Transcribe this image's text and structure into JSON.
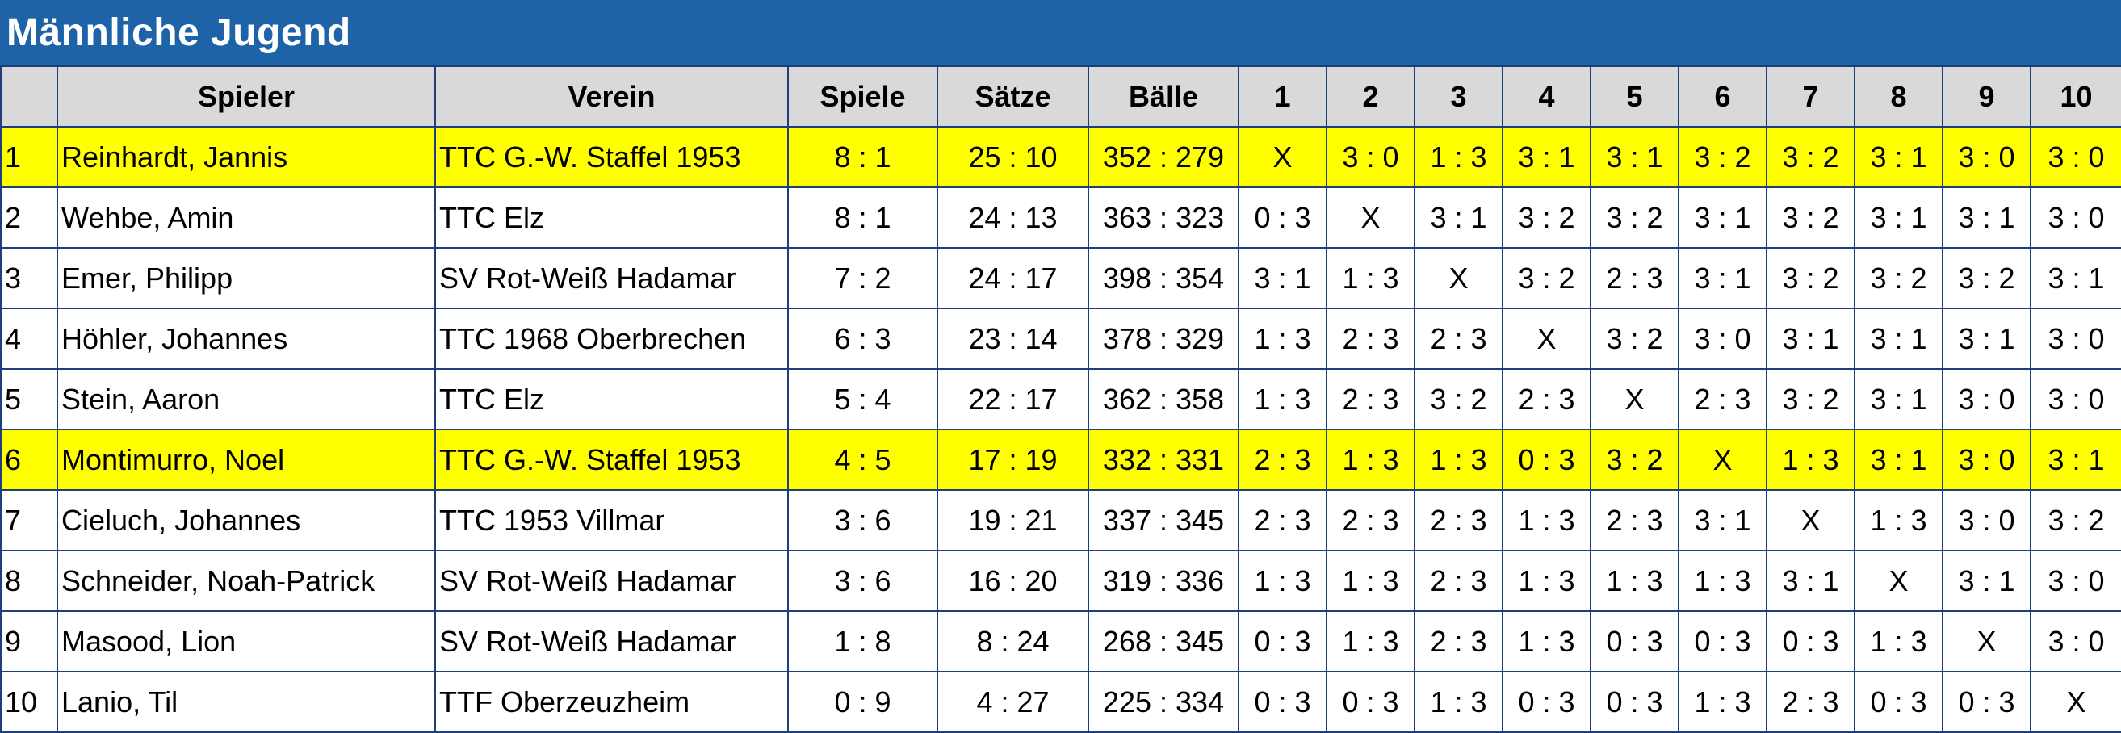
{
  "title": "Männliche Jugend",
  "columns": {
    "rank": "",
    "player": "Spieler",
    "club": "Verein",
    "games": "Spiele",
    "sets": "Sätze",
    "balls": "Bälle",
    "opponents": [
      "1",
      "2",
      "3",
      "4",
      "5",
      "6",
      "7",
      "8",
      "9",
      "10"
    ]
  },
  "highlight_color": "#ffff00",
  "header_color": "#1e63a8",
  "rows": [
    {
      "rank": "1",
      "player": "Reinhardt, Jannis",
      "club": "TTC G.-W. Staffel 1953",
      "games": "8 : 1",
      "sets": "25 : 10",
      "balls": "352 : 279",
      "highlight": true,
      "results": [
        "X",
        "3 : 0",
        "1 : 3",
        "3 : 1",
        "3 : 1",
        "3 : 2",
        "3 : 2",
        "3 : 1",
        "3 : 0",
        "3 : 0"
      ]
    },
    {
      "rank": "2",
      "player": "Wehbe, Amin",
      "club": "TTC Elz",
      "games": "8 : 1",
      "sets": "24 : 13",
      "balls": "363 : 323",
      "highlight": false,
      "results": [
        "0 : 3",
        "X",
        "3 : 1",
        "3 : 2",
        "3 : 2",
        "3 : 1",
        "3 : 2",
        "3 : 1",
        "3 : 1",
        "3 : 0"
      ]
    },
    {
      "rank": "3",
      "player": "Emer, Philipp",
      "club": "SV Rot-Weiß Hadamar",
      "games": "7 : 2",
      "sets": "24 : 17",
      "balls": "398 : 354",
      "highlight": false,
      "results": [
        "3 : 1",
        "1 : 3",
        "X",
        "3 : 2",
        "2 : 3",
        "3 : 1",
        "3 : 2",
        "3 : 2",
        "3 : 2",
        "3 : 1"
      ]
    },
    {
      "rank": "4",
      "player": "Höhler, Johannes",
      "club": "TTC 1968 Oberbrechen",
      "games": "6 : 3",
      "sets": "23 : 14",
      "balls": "378 : 329",
      "highlight": false,
      "results": [
        "1 : 3",
        "2 : 3",
        "2 : 3",
        "X",
        "3 : 2",
        "3 : 0",
        "3 : 1",
        "3 : 1",
        "3 : 1",
        "3 : 0"
      ]
    },
    {
      "rank": "5",
      "player": "Stein, Aaron",
      "club": "TTC Elz",
      "games": "5 : 4",
      "sets": "22 : 17",
      "balls": "362 : 358",
      "highlight": false,
      "results": [
        "1 : 3",
        "2 : 3",
        "3 : 2",
        "2 : 3",
        "X",
        "2 : 3",
        "3 : 2",
        "3 : 1",
        "3 : 0",
        "3 : 0"
      ]
    },
    {
      "rank": "6",
      "player": "Montimurro, Noel",
      "club": "TTC G.-W. Staffel 1953",
      "games": "4 : 5",
      "sets": "17 : 19",
      "balls": "332 : 331",
      "highlight": true,
      "results": [
        "2 : 3",
        "1 : 3",
        "1 : 3",
        "0 : 3",
        "3 : 2",
        "X",
        "1 : 3",
        "3 : 1",
        "3 : 0",
        "3 : 1"
      ]
    },
    {
      "rank": "7",
      "player": "Cieluch, Johannes",
      "club": "TTC 1953 Villmar",
      "games": "3 : 6",
      "sets": "19 : 21",
      "balls": "337 : 345",
      "highlight": false,
      "results": [
        "2 : 3",
        "2 : 3",
        "2 : 3",
        "1 : 3",
        "2 : 3",
        "3 : 1",
        "X",
        "1 : 3",
        "3 : 0",
        "3 : 2"
      ]
    },
    {
      "rank": "8",
      "player": "Schneider, Noah-Patrick",
      "club": "SV Rot-Weiß Hadamar",
      "games": "3 : 6",
      "sets": "16 : 20",
      "balls": "319 : 336",
      "highlight": false,
      "results": [
        "1 : 3",
        "1 : 3",
        "2 : 3",
        "1 : 3",
        "1 : 3",
        "1 : 3",
        "3 : 1",
        "X",
        "3 : 1",
        "3 : 0"
      ]
    },
    {
      "rank": "9",
      "player": "Masood, Lion",
      "club": "SV Rot-Weiß Hadamar",
      "games": "1 : 8",
      "sets": "8 : 24",
      "balls": "268 : 345",
      "highlight": false,
      "results": [
        "0 : 3",
        "1 : 3",
        "2 : 3",
        "1 : 3",
        "0 : 3",
        "0 : 3",
        "0 : 3",
        "1 : 3",
        "X",
        "3 : 0"
      ]
    },
    {
      "rank": "10",
      "player": "Lanio, Til",
      "club": "TTF Oberzeuzheim",
      "games": "0 : 9",
      "sets": "4 : 27",
      "balls": "225 : 334",
      "highlight": false,
      "results": [
        "0 : 3",
        "0 : 3",
        "1 : 3",
        "0 : 3",
        "0 : 3",
        "1 : 3",
        "2 : 3",
        "0 : 3",
        "0 : 3",
        "X"
      ]
    }
  ]
}
